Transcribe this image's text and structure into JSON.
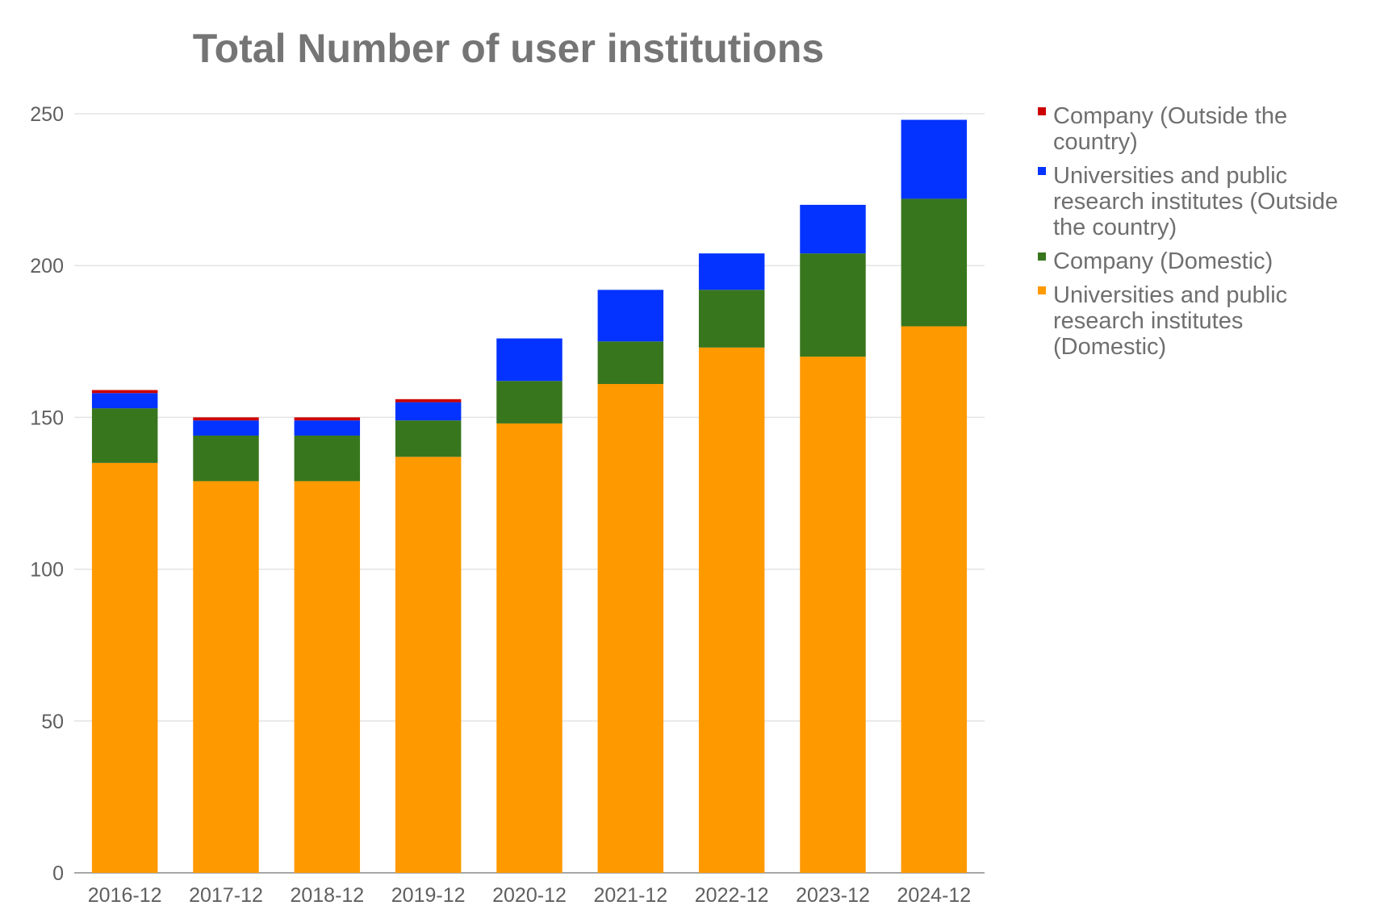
{
  "chart_data": {
    "type": "bar",
    "stacked": true,
    "title": "Total Number of user institutions",
    "xlabel": "",
    "ylabel": "",
    "categories": [
      "2016-12",
      "2017-12",
      "2018-12",
      "2019-12",
      "2020-12",
      "2021-12",
      "2022-12",
      "2023-12",
      "2024-12"
    ],
    "series": [
      {
        "name": "Universities and public research institutes (Domestic)",
        "legend_lines": [
          "Universities and public",
          "research institutes",
          "(Domestic)"
        ],
        "color": "#ff9900",
        "values": [
          135,
          129,
          129,
          137,
          148,
          161,
          173,
          170,
          180
        ]
      },
      {
        "name": "Company (Domestic)",
        "legend_lines": [
          "Company (Domestic)"
        ],
        "color": "#38761d",
        "values": [
          18,
          15,
          15,
          12,
          14,
          14,
          19,
          34,
          42
        ]
      },
      {
        "name": "Universities and public research institutes (Outside the country)",
        "legend_lines": [
          "Universities and public",
          "research institutes (Outside",
          "the country)"
        ],
        "color": "#0433ff",
        "values": [
          5,
          5,
          5,
          6,
          14,
          17,
          12,
          16,
          26
        ]
      },
      {
        "name": "Company (Outside the country)",
        "legend_lines": [
          "Company (Outside the",
          "country)"
        ],
        "color": "#cc0000",
        "values": [
          1,
          1,
          1,
          1,
          0,
          0,
          0,
          0,
          0
        ]
      }
    ],
    "legend_order": [
      3,
      2,
      1,
      0
    ],
    "ylim": [
      0,
      250
    ],
    "yticks": [
      0,
      50,
      100,
      150,
      200,
      250
    ],
    "grid": true,
    "legend_position": "right"
  }
}
